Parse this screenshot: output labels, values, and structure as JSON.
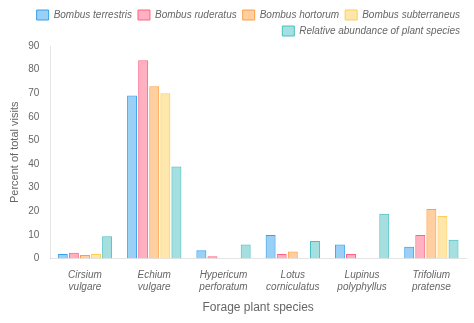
{
  "chart_data": {
    "type": "bar",
    "categories": [
      "Cirsium\nvulgare",
      "Echium\nvulgare",
      "Hypericum\nperforatum",
      "Lotus\ncorniculatus",
      "Lupinus\npolyphyllus",
      "Trifolium\npratense"
    ],
    "series": [
      {
        "name": "Bombus terrestris",
        "values": [
          2,
          69,
          3.5,
          10,
          6,
          5
        ]
      },
      {
        "name": "Bombus ruderatus",
        "values": [
          2.5,
          84,
          1,
          2,
          2,
          10
        ]
      },
      {
        "name": "Bombus hortorum",
        "values": [
          1.5,
          73,
          0,
          3,
          0,
          21
        ]
      },
      {
        "name": "Bombus subterraneus",
        "values": [
          2,
          70,
          0,
          0,
          0,
          18
        ]
      },
      {
        "name": "Relative abundance of plant species",
        "values": [
          9.5,
          39,
          6,
          7.5,
          19,
          8
        ]
      }
    ],
    "xlabel": "Forage plant species",
    "ylabel": "Percent of total visits",
    "ylim": [
      0,
      90
    ],
    "yticks": [
      0,
      10,
      20,
      30,
      40,
      50,
      60,
      70,
      80,
      90
    ],
    "grid": false,
    "legend": "upper right"
  }
}
